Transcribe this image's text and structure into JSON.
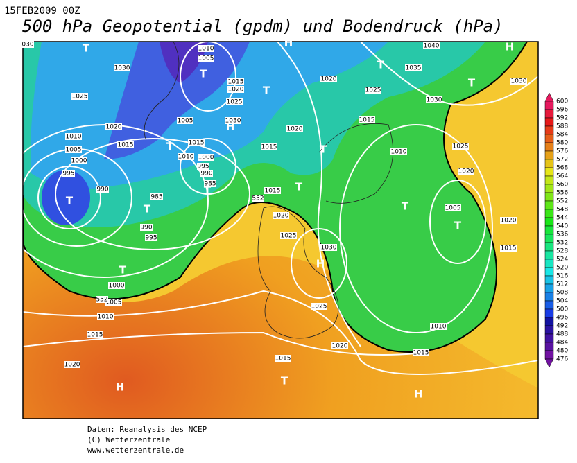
{
  "header": {
    "date": "15FEB2009 00Z",
    "title": "500 hPa Geopotential (gpdm) und Bodendruck (hPa)"
  },
  "map": {
    "isobar_labels": [
      "030",
      "1010",
      "1005",
      "1030",
      "1015",
      "1020",
      "1025",
      "1025",
      "1030",
      "1005",
      "1020",
      "1015",
      "1015",
      "1010",
      "1005",
      "1000",
      "1010",
      "1000",
      "995",
      "990",
      "985",
      "995",
      "990",
      "985",
      "990",
      "995",
      "1000",
      "1005",
      "1010",
      "1015",
      "1020",
      "1020",
      "1025",
      "1020",
      "1015",
      "1015",
      "1010",
      "1015",
      "1020",
      "1025",
      "1030",
      "1025",
      "1020",
      "1015",
      "1010",
      "1015",
      "1005",
      "1020",
      "1015",
      "1020",
      "1025",
      "1030",
      "1035",
      "1040",
      "1030",
      "552",
      "552"
    ],
    "pressure_centers": [
      "T",
      "H",
      "H",
      "T",
      "T",
      "H",
      "T",
      "T",
      "T",
      "T",
      "T",
      "T",
      "T",
      "T",
      "T",
      "T",
      "H",
      "T",
      "T",
      "H",
      "H"
    ]
  },
  "colorbar": {
    "levels": [
      600,
      596,
      592,
      588,
      584,
      580,
      576,
      572,
      568,
      564,
      560,
      556,
      552,
      548,
      544,
      540,
      536,
      532,
      528,
      524,
      520,
      516,
      512,
      508,
      504,
      500,
      496,
      492,
      488,
      484,
      480,
      476
    ]
  },
  "footer": {
    "lines": [
      "Daten: Reanalysis des NCEP",
      "(C) Wetterzentrale",
      "www.wetterzentrale.de"
    ]
  }
}
